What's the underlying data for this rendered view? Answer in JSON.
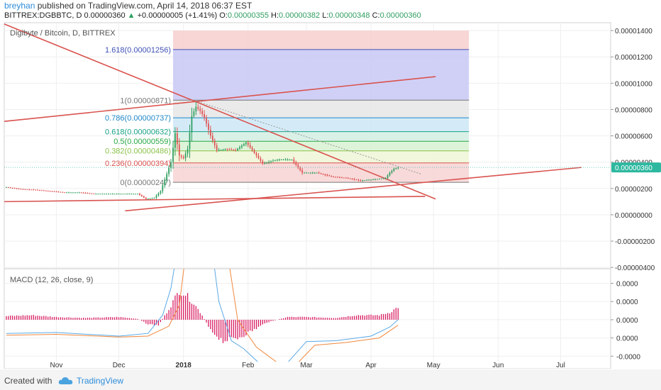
{
  "header": {
    "user": "breyhan",
    "published_text": "published on TradingView.com, April 14, 2018 06:37 EST",
    "symbol": "BITTREX:DGBBTC, D",
    "last": "0.00000360",
    "change_arrow": "▲",
    "change": "+0.00000005 (+1.41%)",
    "o_label": "O:",
    "o_value": "0.00000355",
    "h_label": "H:",
    "h_value": "0.00000382",
    "l_label": "L:",
    "l_value": "0.00000348",
    "c_label": "C:",
    "c_value": "0.00000360"
  },
  "footer": {
    "created_with": "Created with",
    "brand": "TradingView",
    "logo_icon": "tradingview-cloud-icon"
  },
  "colors": {
    "up": "#2e9e60",
    "down": "#e05252",
    "trendline": "#d9534f",
    "macd_line": "#5aa9e6",
    "signal_line": "#f0883e",
    "histogram": "#d81b60",
    "last_price_badge": "#2eb8a0"
  },
  "chart_data": [
    {
      "type": "candlestick",
      "title": "Digibyte / Bitcoin, D, BITTREX",
      "y_ticks": [
        "0.00001400",
        "0.00001200",
        "0.00001000",
        "0.00000800",
        "0.00000600",
        "0.00000400",
        "0.00000200",
        "0.00000000",
        "-0.00000200",
        "-0.00000400"
      ],
      "y_tick_values": [
        1.4e-05,
        1.2e-05,
        1e-05,
        8e-06,
        6e-06,
        4e-06,
        2e-06,
        0,
        -2e-06,
        -4e-06
      ],
      "ylim": [
        -4.1e-06,
        1.46e-05
      ],
      "last_price_label": "0.00000360",
      "last_price": 3.6e-06,
      "x_ticks": [
        "Nov",
        "Dec",
        "2018",
        "Feb",
        "Mar",
        "Apr",
        "May",
        "Jun",
        "Jul"
      ],
      "x_tick_dates": [
        "2017-11-01",
        "2017-12-01",
        "2018-01-01",
        "2018-02-01",
        "2018-03-01",
        "2018-04-01",
        "2018-05-01",
        "2018-06-01",
        "2018-07-01"
      ],
      "xlim": [
        "2017-10-07",
        "2018-07-25"
      ],
      "series_close": [
        [
          "2017-10-08",
          2.1e-06
        ],
        [
          "2017-10-15",
          1.95e-06
        ],
        [
          "2017-10-22",
          1.9e-06
        ],
        [
          "2017-10-29",
          1.8e-06
        ],
        [
          "2017-11-05",
          1.7e-06
        ],
        [
          "2017-11-12",
          1.7e-06
        ],
        [
          "2017-11-19",
          1.6e-06
        ],
        [
          "2017-11-26",
          1.6e-06
        ],
        [
          "2017-12-03",
          1.6e-06
        ],
        [
          "2017-12-10",
          1.6e-06
        ],
        [
          "2017-12-14",
          1.2e-06
        ],
        [
          "2017-12-18",
          1.3e-06
        ],
        [
          "2017-12-21",
          1.8e-06
        ],
        [
          "2017-12-24",
          3.1e-06
        ],
        [
          "2017-12-26",
          4e-06
        ],
        [
          "2017-12-28",
          6.2e-06
        ],
        [
          "2017-12-30",
          4.5e-06
        ],
        [
          "2018-01-01",
          4.3e-06
        ],
        [
          "2018-01-03",
          5e-06
        ],
        [
          "2018-01-05",
          7.5e-06
        ],
        [
          "2018-01-07",
          8.2e-06
        ],
        [
          "2018-01-09",
          7.9e-06
        ],
        [
          "2018-01-11",
          7.4e-06
        ],
        [
          "2018-01-14",
          6e-06
        ],
        [
          "2018-01-17",
          4.9e-06
        ],
        [
          "2018-01-21",
          5e-06
        ],
        [
          "2018-01-26",
          4.9e-06
        ],
        [
          "2018-01-31",
          5.5e-06
        ],
        [
          "2018-02-04",
          4.7e-06
        ],
        [
          "2018-02-08",
          3.9e-06
        ],
        [
          "2018-02-15",
          4.2e-06
        ],
        [
          "2018-02-22",
          4.2e-06
        ],
        [
          "2018-02-27",
          3.2e-06
        ],
        [
          "2018-03-06",
          3.2e-06
        ],
        [
          "2018-03-13",
          2.9e-06
        ],
        [
          "2018-03-20",
          2.8e-06
        ],
        [
          "2018-03-27",
          2.6e-06
        ],
        [
          "2018-04-03",
          2.7e-06
        ],
        [
          "2018-04-08",
          2.8e-06
        ],
        [
          "2018-04-10",
          3.2e-06
        ],
        [
          "2018-04-12",
          3.5e-06
        ],
        [
          "2018-04-14",
          3.6e-06
        ]
      ],
      "fibonacci": {
        "levels": [
          {
            "label": "1.618(0.00001256)",
            "value": 1.256e-05,
            "color": "#3f51b5"
          },
          {
            "label": "1(0.00000871)",
            "value": 8.71e-06,
            "color": "#777777"
          },
          {
            "label": "0.786(0.00000737)",
            "value": 7.37e-06,
            "color": "#1e88c8"
          },
          {
            "label": "0.618(0.00000632)",
            "value": 6.32e-06,
            "color": "#16a085"
          },
          {
            "label": "0.5(0.00000559)",
            "value": 5.59e-06,
            "color": "#27a845"
          },
          {
            "label": "0.382(0.00000486)",
            "value": 4.86e-06,
            "color": "#8bc34a"
          },
          {
            "label": "0.236(0.00000394)",
            "value": 3.94e-06,
            "color": "#d9534f"
          },
          {
            "label": "0(0.00000247)",
            "value": 2.47e-06,
            "color": "#777777"
          }
        ],
        "top_value": 1.4e-05,
        "band_colors": [
          "#f7cfcf",
          "#c8c8f4",
          "#e6e6e6",
          "#cce8f6",
          "#d4efe4",
          "#d8f2d2",
          "#eef6d6",
          "#f7d3d3"
        ],
        "start_date": "2017-12-27",
        "end_date": "2018-05-18"
      },
      "trendlines": [
        {
          "from": [
            "2017-10-07",
            1.45e-05
          ],
          "to": [
            "2018-05-02",
            1.2e-06
          ]
        },
        {
          "from": [
            "2017-10-07",
            7.1e-06
          ],
          "to": [
            "2018-05-02",
            1.05e-05
          ]
        },
        {
          "from": [
            "2017-12-04",
            3e-07
          ],
          "to": [
            "2018-07-11",
            3.6e-06
          ]
        },
        {
          "from": [
            "2017-10-07",
            1e-06
          ],
          "to": [
            "2018-04-27",
            1.4e-06
          ]
        }
      ],
      "dotted_line": {
        "from": [
          "2018-01-08",
          8.6e-06
        ],
        "to": [
          "2018-04-25",
          3.1e-06
        ]
      }
    },
    {
      "type": "line",
      "title": "MACD (12, 26, close, 9)",
      "y_ticks": [
        "0.0000",
        "0.0000",
        "0.0000",
        "0.0000",
        "-0.0000"
      ],
      "y_tick_values": [
        4,
        2,
        0,
        -2,
        -4
      ],
      "ylim": [
        -4.6,
        5.6
      ],
      "histogram": [
        [
          "2017-10-08",
          0.4
        ],
        [
          "2017-10-20",
          0.5
        ],
        [
          "2017-11-01",
          0.3
        ],
        [
          "2017-11-15",
          0.2
        ],
        [
          "2017-12-01",
          0.3
        ],
        [
          "2017-12-10",
          0.1
        ],
        [
          "2017-12-15",
          -0.5
        ],
        [
          "2017-12-20",
          -0.6
        ],
        [
          "2017-12-24",
          0.8
        ],
        [
          "2017-12-27",
          2.0
        ],
        [
          "2017-12-30",
          3.2
        ],
        [
          "2018-01-02",
          2.8
        ],
        [
          "2018-01-06",
          1.8
        ],
        [
          "2018-01-10",
          0.5
        ],
        [
          "2018-01-14",
          -1.2
        ],
        [
          "2018-01-20",
          -2.3
        ],
        [
          "2018-01-27",
          -2.0
        ],
        [
          "2018-02-03",
          -1.2
        ],
        [
          "2018-02-10",
          -0.3
        ],
        [
          "2018-02-20",
          0.3
        ],
        [
          "2018-03-01",
          0.3
        ],
        [
          "2018-03-15",
          0.2
        ],
        [
          "2018-03-25",
          0.5
        ],
        [
          "2018-04-05",
          0.5
        ],
        [
          "2018-04-10",
          0.8
        ],
        [
          "2018-04-14",
          1.4
        ]
      ],
      "macd_line": [
        [
          "2017-10-08",
          -1.5
        ],
        [
          "2017-11-01",
          -1.4
        ],
        [
          "2017-12-01",
          -1.8
        ],
        [
          "2017-12-15",
          -1.5
        ],
        [
          "2017-12-22",
          0.5
        ],
        [
          "2017-12-26",
          3.5
        ],
        [
          "2017-12-30",
          9
        ],
        [
          "2018-01-14",
          9
        ],
        [
          "2018-01-18",
          2
        ],
        [
          "2018-01-24",
          -2.3
        ],
        [
          "2018-01-30",
          -3.2
        ],
        [
          "2018-02-06",
          -4.7
        ],
        [
          "2018-02-20",
          -4.7
        ],
        [
          "2018-03-01",
          -2.4
        ],
        [
          "2018-03-15",
          -2.3
        ],
        [
          "2018-04-01",
          -1.8
        ],
        [
          "2018-04-10",
          -0.8
        ],
        [
          "2018-04-14",
          0.0
        ]
      ],
      "signal_line": [
        [
          "2017-10-08",
          -1.7
        ],
        [
          "2017-11-01",
          -1.6
        ],
        [
          "2017-12-01",
          -1.9
        ],
        [
          "2017-12-15",
          -1.8
        ],
        [
          "2017-12-25",
          -0.7
        ],
        [
          "2017-12-30",
          1.6
        ],
        [
          "2018-01-03",
          9
        ],
        [
          "2018-01-21",
          9
        ],
        [
          "2018-01-27",
          0.0
        ],
        [
          "2018-02-05",
          -3.0
        ],
        [
          "2018-02-15",
          -4.7
        ],
        [
          "2018-02-25",
          -4.7
        ],
        [
          "2018-03-05",
          -2.8
        ],
        [
          "2018-03-20",
          -2.5
        ],
        [
          "2018-04-05",
          -2.0
        ],
        [
          "2018-04-14",
          -0.6
        ]
      ]
    }
  ]
}
